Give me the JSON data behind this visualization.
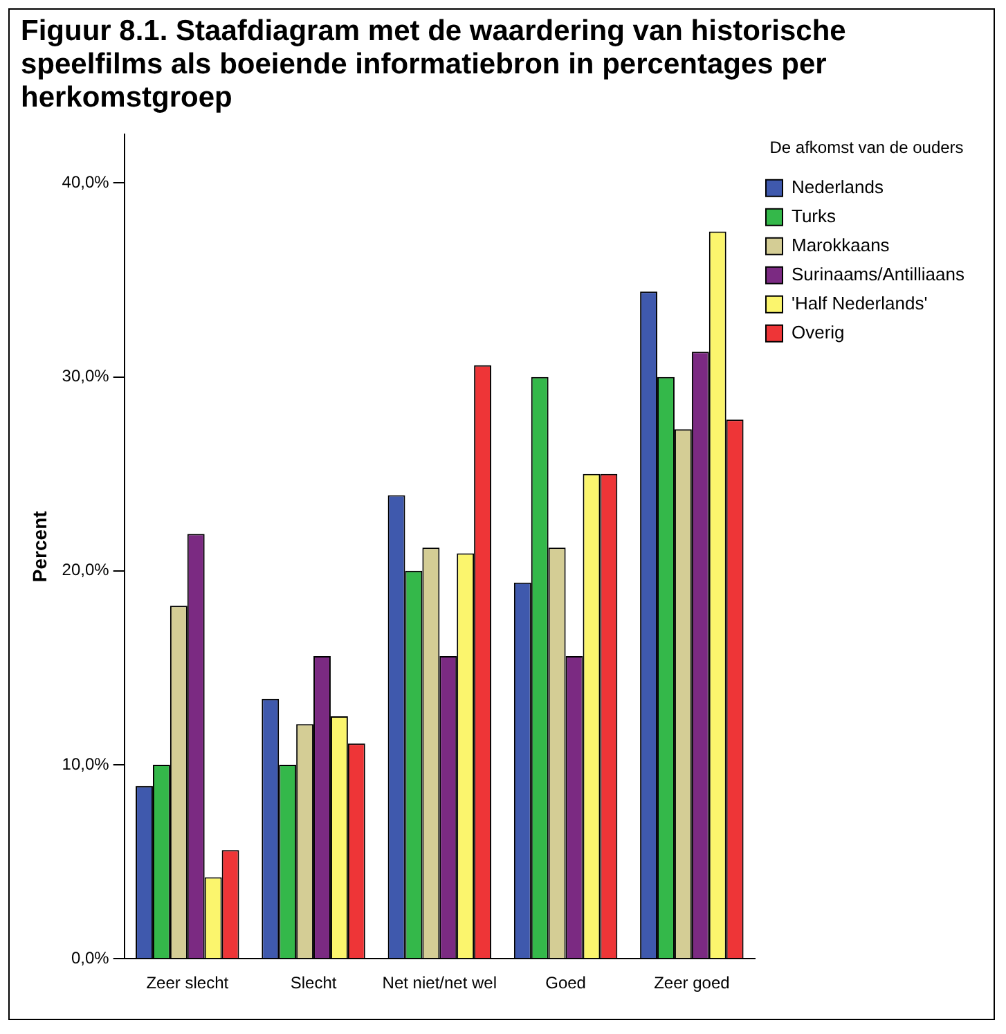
{
  "chart_data": {
    "type": "bar",
    "title": "Figuur 8.1. Staafdiagram met de waardering van historische speelfilms als boeiende informatiebron in percentages per herkomstgroep",
    "ylabel": "Percent",
    "legend_title": "De afkomst van de ouders",
    "categories": [
      "Zeer slecht",
      "Slecht",
      "Net niet/net wel",
      "Goed",
      "Zeer goed"
    ],
    "series": [
      {
        "name": "Nederlands",
        "color": "#3f59ad",
        "values": [
          8.9,
          13.4,
          23.9,
          19.4,
          34.4
        ]
      },
      {
        "name": "Turks",
        "color": "#34b84a",
        "values": [
          10.0,
          10.0,
          20.0,
          30.0,
          30.0
        ]
      },
      {
        "name": "Marokkaans",
        "color": "#d4cd95",
        "values": [
          18.2,
          12.1,
          21.2,
          21.2,
          27.3
        ]
      },
      {
        "name": "Surinaams/Antilliaans",
        "color": "#7b2a82",
        "values": [
          21.9,
          15.6,
          15.6,
          15.6,
          31.3
        ]
      },
      {
        "name": "'Half Nederlands'",
        "color": "#fbf56d",
        "values": [
          4.2,
          12.5,
          20.9,
          25.0,
          37.5
        ]
      },
      {
        "name": "Overig",
        "color": "#ee3537",
        "values": [
          5.6,
          11.1,
          30.6,
          25.0,
          27.8
        ]
      }
    ],
    "ylim": [
      0,
      42.5
    ],
    "yticks": [
      {
        "value": 0,
        "label": "0,0%"
      },
      {
        "value": 10,
        "label": "10,0%"
      },
      {
        "value": 20,
        "label": "20,0%"
      },
      {
        "value": 30,
        "label": "30,0%"
      },
      {
        "value": 40,
        "label": "40,0%"
      }
    ],
    "grid": false,
    "legend": "right"
  }
}
